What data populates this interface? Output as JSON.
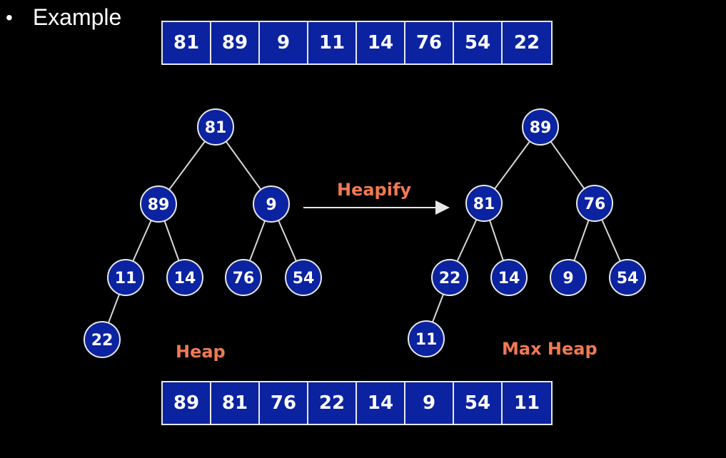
{
  "header": {
    "bullet": "•",
    "title": "Example"
  },
  "input_array": [
    "81",
    "89",
    "9",
    "11",
    "14",
    "76",
    "54",
    "22"
  ],
  "output_array": [
    "89",
    "81",
    "76",
    "22",
    "14",
    "9",
    "54",
    "11"
  ],
  "heap": {
    "label": "Heap",
    "nodes": [
      "81",
      "89",
      "9",
      "11",
      "14",
      "76",
      "54",
      "22"
    ]
  },
  "max_heap": {
    "label": "Max Heap",
    "nodes": [
      "89",
      "81",
      "76",
      "22",
      "14",
      "9",
      "54",
      "11"
    ]
  },
  "arrow": {
    "label": "Heapify"
  },
  "colors": {
    "node_fill": "#0b23a0",
    "node_stroke": "#e8e8e8",
    "edge": "#d8d8d8",
    "label": "#f07a52",
    "background": "#000000"
  }
}
